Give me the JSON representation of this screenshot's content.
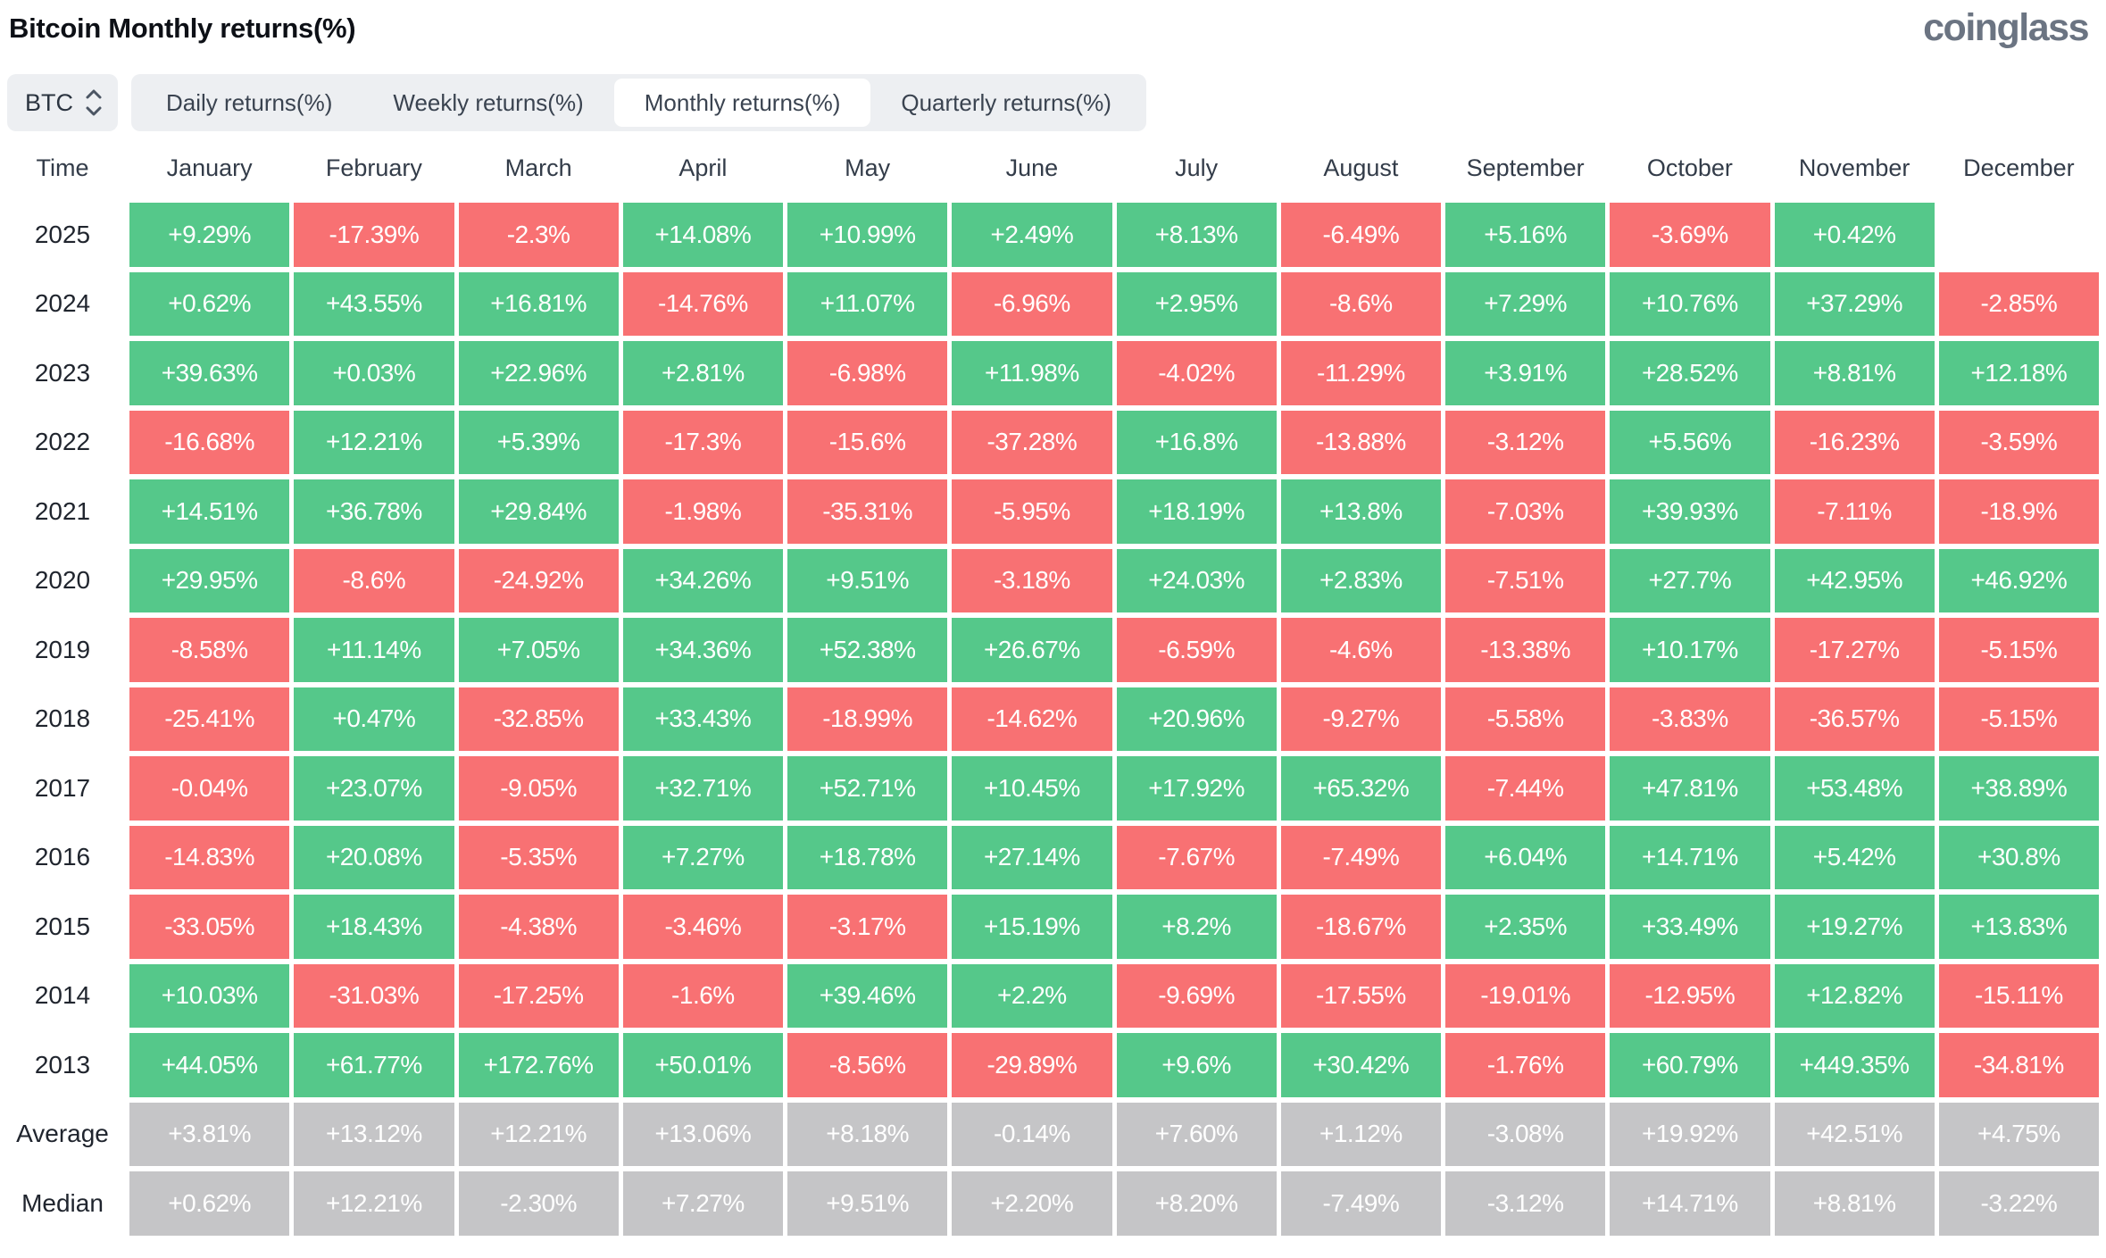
{
  "page": {
    "title": "Bitcoin Monthly returns(%)",
    "logo": "coinglass"
  },
  "controls": {
    "symbol_select": {
      "value": "BTC",
      "icon": "sort-arrows"
    },
    "tabs": [
      {
        "label": "Daily returns(%)",
        "active": false
      },
      {
        "label": "Weekly returns(%)",
        "active": false
      },
      {
        "label": "Monthly returns(%)",
        "active": true
      },
      {
        "label": "Quarterly returns(%)",
        "active": false
      }
    ]
  },
  "colors": {
    "positive": "#55c88a",
    "negative": "#f87173",
    "summary": "#c5c5c7",
    "tab_bar_bg": "#edeff2",
    "active_tab_bg": "#ffffff",
    "logo_text": "#6b7482"
  },
  "chart_data": {
    "type": "heatmap",
    "title": "Bitcoin Monthly returns(%)",
    "columns": [
      "Time",
      "January",
      "February",
      "March",
      "April",
      "May",
      "June",
      "July",
      "August",
      "September",
      "October",
      "November",
      "December"
    ],
    "rows": [
      {
        "label": "2025",
        "kind": "year",
        "values": [
          "+9.29%",
          "-17.39%",
          "-2.3%",
          "+14.08%",
          "+10.99%",
          "+2.49%",
          "+8.13%",
          "-6.49%",
          "+5.16%",
          "-3.69%",
          "+0.42%",
          null
        ]
      },
      {
        "label": "2024",
        "kind": "year",
        "values": [
          "+0.62%",
          "+43.55%",
          "+16.81%",
          "-14.76%",
          "+11.07%",
          "-6.96%",
          "+2.95%",
          "-8.6%",
          "+7.29%",
          "+10.76%",
          "+37.29%",
          "-2.85%"
        ]
      },
      {
        "label": "2023",
        "kind": "year",
        "values": [
          "+39.63%",
          "+0.03%",
          "+22.96%",
          "+2.81%",
          "-6.98%",
          "+11.98%",
          "-4.02%",
          "-11.29%",
          "+3.91%",
          "+28.52%",
          "+8.81%",
          "+12.18%"
        ]
      },
      {
        "label": "2022",
        "kind": "year",
        "values": [
          "-16.68%",
          "+12.21%",
          "+5.39%",
          "-17.3%",
          "-15.6%",
          "-37.28%",
          "+16.8%",
          "-13.88%",
          "-3.12%",
          "+5.56%",
          "-16.23%",
          "-3.59%"
        ]
      },
      {
        "label": "2021",
        "kind": "year",
        "values": [
          "+14.51%",
          "+36.78%",
          "+29.84%",
          "-1.98%",
          "-35.31%",
          "-5.95%",
          "+18.19%",
          "+13.8%",
          "-7.03%",
          "+39.93%",
          "-7.11%",
          "-18.9%"
        ]
      },
      {
        "label": "2020",
        "kind": "year",
        "values": [
          "+29.95%",
          "-8.6%",
          "-24.92%",
          "+34.26%",
          "+9.51%",
          "-3.18%",
          "+24.03%",
          "+2.83%",
          "-7.51%",
          "+27.7%",
          "+42.95%",
          "+46.92%"
        ]
      },
      {
        "label": "2019",
        "kind": "year",
        "values": [
          "-8.58%",
          "+11.14%",
          "+7.05%",
          "+34.36%",
          "+52.38%",
          "+26.67%",
          "-6.59%",
          "-4.6%",
          "-13.38%",
          "+10.17%",
          "-17.27%",
          "-5.15%"
        ]
      },
      {
        "label": "2018",
        "kind": "year",
        "values": [
          "-25.41%",
          "+0.47%",
          "-32.85%",
          "+33.43%",
          "-18.99%",
          "-14.62%",
          "+20.96%",
          "-9.27%",
          "-5.58%",
          "-3.83%",
          "-36.57%",
          "-5.15%"
        ]
      },
      {
        "label": "2017",
        "kind": "year",
        "values": [
          "-0.04%",
          "+23.07%",
          "-9.05%",
          "+32.71%",
          "+52.71%",
          "+10.45%",
          "+17.92%",
          "+65.32%",
          "-7.44%",
          "+47.81%",
          "+53.48%",
          "+38.89%"
        ]
      },
      {
        "label": "2016",
        "kind": "year",
        "values": [
          "-14.83%",
          "+20.08%",
          "-5.35%",
          "+7.27%",
          "+18.78%",
          "+27.14%",
          "-7.67%",
          "-7.49%",
          "+6.04%",
          "+14.71%",
          "+5.42%",
          "+30.8%"
        ]
      },
      {
        "label": "2015",
        "kind": "year",
        "values": [
          "-33.05%",
          "+18.43%",
          "-4.38%",
          "-3.46%",
          "-3.17%",
          "+15.19%",
          "+8.2%",
          "-18.67%",
          "+2.35%",
          "+33.49%",
          "+19.27%",
          "+13.83%"
        ]
      },
      {
        "label": "2014",
        "kind": "year",
        "values": [
          "+10.03%",
          "-31.03%",
          "-17.25%",
          "-1.6%",
          "+39.46%",
          "+2.2%",
          "-9.69%",
          "-17.55%",
          "-19.01%",
          "-12.95%",
          "+12.82%",
          "-15.11%"
        ]
      },
      {
        "label": "2013",
        "kind": "year",
        "values": [
          "+44.05%",
          "+61.77%",
          "+172.76%",
          "+50.01%",
          "-8.56%",
          "-29.89%",
          "+9.6%",
          "+30.42%",
          "-1.76%",
          "+60.79%",
          "+449.35%",
          "-34.81%"
        ]
      },
      {
        "label": "Average",
        "kind": "summary",
        "values": [
          "+3.81%",
          "+13.12%",
          "+12.21%",
          "+13.06%",
          "+8.18%",
          "-0.14%",
          "+7.60%",
          "+1.12%",
          "-3.08%",
          "+19.92%",
          "+42.51%",
          "+4.75%"
        ]
      },
      {
        "label": "Median",
        "kind": "summary",
        "values": [
          "+0.62%",
          "+12.21%",
          "-2.30%",
          "+7.27%",
          "+9.51%",
          "+2.20%",
          "+8.20%",
          "-7.49%",
          "-3.12%",
          "+14.71%",
          "+8.81%",
          "-3.22%"
        ]
      }
    ]
  }
}
